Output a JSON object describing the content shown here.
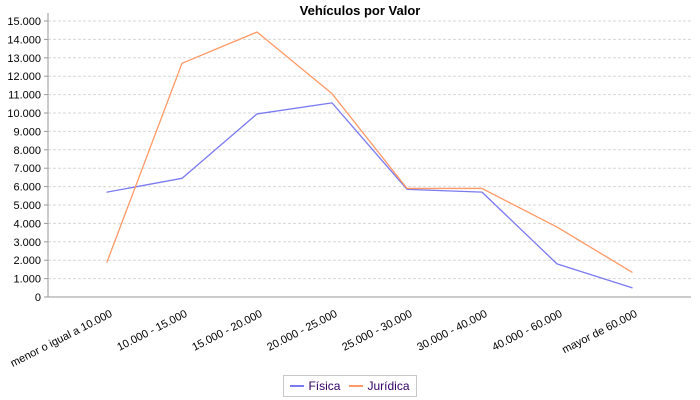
{
  "chart_data": {
    "type": "line",
    "title": "Vehículos por Valor",
    "categories": [
      "menor o igual a 10.000",
      "10.000 - 15.000",
      "15.000 - 20.000",
      "20.000 - 25.000",
      "25.000 - 30.000",
      "30.000 - 40.000",
      "40.000 - 60.000",
      "mayor de 60.000"
    ],
    "series": [
      {
        "name": "Física",
        "color": "#7a7af2",
        "values": [
          5700,
          6450,
          9950,
          10550,
          5850,
          5700,
          1800,
          500
        ]
      },
      {
        "name": "Jurídica",
        "color": "#ff9966",
        "values": [
          1900,
          12700,
          14400,
          11050,
          5900,
          5900,
          3800,
          1350
        ]
      }
    ],
    "y_axis": {
      "min": 0,
      "max": 15000,
      "tick_interval": 1000,
      "tick_labels": [
        "0",
        "1.000",
        "2.000",
        "3.000",
        "4.000",
        "5.000",
        "6.000",
        "7.000",
        "8.000",
        "9.000",
        "10.000",
        "11.000",
        "12.000",
        "13.000",
        "14.000",
        "15.000"
      ]
    },
    "x_label_rotation_deg": -27,
    "grid": {
      "show": true,
      "color": "#d7d7d7",
      "dash": "3,2"
    },
    "axis_color": "#9a9a9a",
    "tick_label_color": "#000000",
    "legend": {
      "position": "bottom",
      "border_color": "#c8c8c8",
      "text_color": "#330066"
    }
  }
}
